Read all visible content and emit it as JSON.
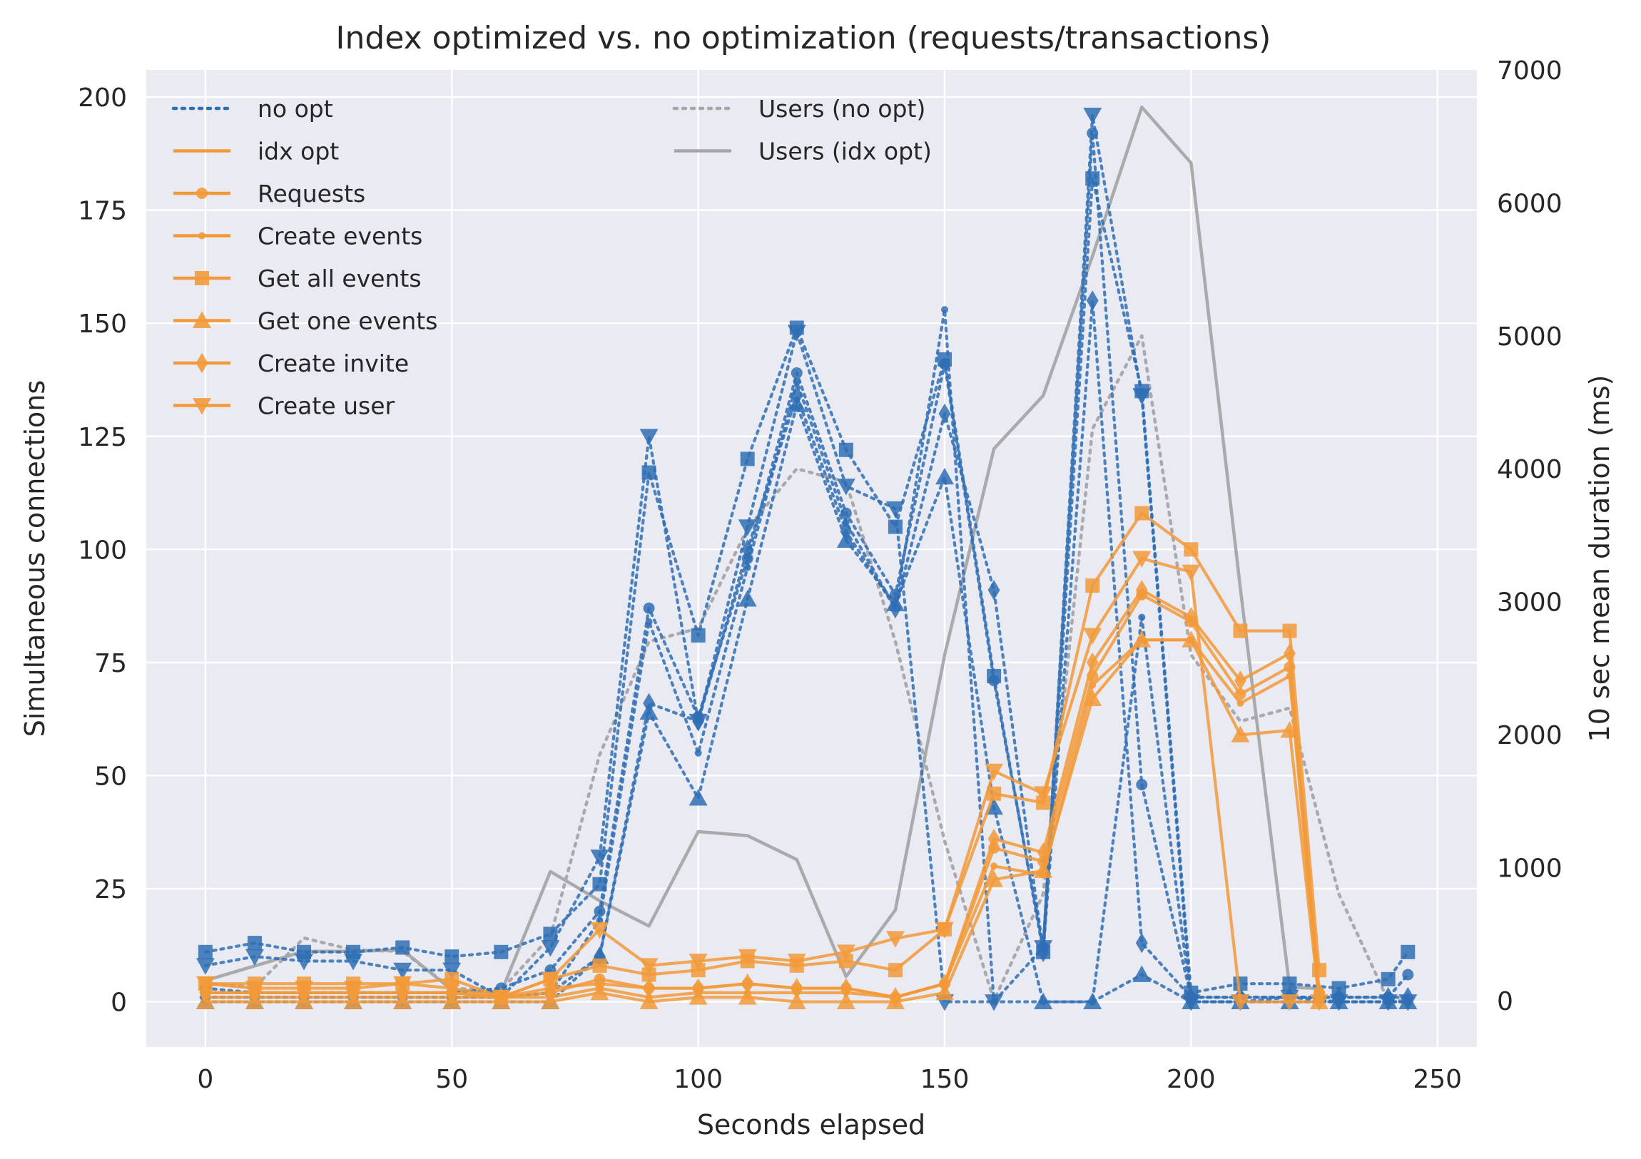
{
  "chart_data": {
    "type": "line",
    "title": "Index optimized vs. no optimization (requests/transactions)",
    "xlabel": "Seconds elapsed",
    "ylabel": "Simultaneous connections",
    "ylabel_right": "10 sec mean duration (ms)",
    "xlim": [
      -12,
      258
    ],
    "ylim": [
      -10,
      206
    ],
    "ylim_right": [
      -350,
      7000
    ],
    "x_ticks": [
      "0",
      "50",
      "100",
      "150",
      "200",
      "250"
    ],
    "y_ticks": [
      "0",
      "25",
      "50",
      "75",
      "100",
      "125",
      "150",
      "175",
      "200"
    ],
    "y_ticks_right": [
      "0",
      "1000",
      "2000",
      "3000",
      "4000",
      "5000",
      "6000",
      "7000"
    ],
    "grid": true,
    "colors": {
      "background": "#eaeaf2",
      "grid": "#ffffff",
      "no_opt": "#2f6fb4",
      "idx_opt": "#f29a3a",
      "users": "#a6a6a9"
    },
    "legend_left": [
      {
        "label": "no opt",
        "style": "dotted",
        "color": "#2f6fb4",
        "marker": "none"
      },
      {
        "label": "idx opt",
        "style": "solid",
        "color": "#f29a3a",
        "marker": "none"
      },
      {
        "label": "Requests",
        "style": "solid",
        "color": "#f29a3a",
        "marker": "circle"
      },
      {
        "label": "Create events",
        "style": "solid",
        "color": "#f29a3a",
        "marker": "point"
      },
      {
        "label": "Get all events",
        "style": "solid",
        "color": "#f29a3a",
        "marker": "square"
      },
      {
        "label": "Get one events",
        "style": "solid",
        "color": "#f29a3a",
        "marker": "triangle-up"
      },
      {
        "label": "Create invite",
        "style": "solid",
        "color": "#f29a3a",
        "marker": "diamond"
      },
      {
        "label": "Create user",
        "style": "solid",
        "color": "#f29a3a",
        "marker": "triangle-down"
      }
    ],
    "legend_right": [
      {
        "label": "Users (no opt)",
        "style": "dotted",
        "color": "#a6a6a9"
      },
      {
        "label": "Users (idx opt)",
        "style": "solid",
        "color": "#a6a6a9"
      }
    ],
    "legend_placement": "upper-left",
    "series_no_opt": [
      {
        "marker": "circle",
        "x": [
          0,
          10,
          20,
          30,
          40,
          50,
          60,
          70,
          80,
          90,
          100,
          110,
          120,
          130,
          140,
          150,
          160,
          170,
          180,
          190,
          200,
          210,
          220,
          230,
          240,
          244
        ],
        "y": [
          3,
          2,
          2,
          2,
          2,
          2,
          3,
          7,
          20,
          87,
          63,
          98,
          139,
          108,
          90,
          141,
          71,
          12,
          192,
          48,
          1,
          1,
          1,
          1,
          1,
          6
        ]
      },
      {
        "marker": "point",
        "x": [
          0,
          10,
          20,
          30,
          40,
          50,
          60,
          70,
          80,
          90,
          100,
          110,
          120,
          130,
          140,
          150,
          160,
          170,
          180,
          190,
          200,
          210,
          220,
          230,
          240,
          244
        ],
        "y": [
          1,
          1,
          1,
          1,
          1,
          1,
          1,
          2,
          18,
          84,
          55,
          96,
          137,
          106,
          87,
          153,
          0,
          0,
          0,
          85,
          0,
          0,
          0,
          0,
          0,
          0
        ]
      },
      {
        "marker": "square",
        "x": [
          0,
          10,
          20,
          30,
          40,
          50,
          60,
          70,
          80,
          90,
          100,
          110,
          120,
          130,
          140,
          150,
          160,
          170,
          180,
          190,
          200,
          210,
          220,
          230,
          240,
          244
        ],
        "y": [
          11,
          13,
          11,
          11,
          12,
          10,
          11,
          15,
          26,
          117,
          81,
          120,
          149,
          122,
          105,
          142,
          72,
          11,
          182,
          135,
          2,
          4,
          4,
          3,
          5,
          11
        ]
      },
      {
        "marker": "triangle-up",
        "x": [
          0,
          10,
          20,
          30,
          40,
          50,
          60,
          70,
          80,
          90,
          100,
          110,
          120,
          130,
          140,
          150,
          160,
          170,
          180,
          190,
          200,
          210,
          220,
          230,
          240,
          244
        ],
        "y": [
          0,
          0,
          0,
          0,
          0,
          0,
          0,
          0,
          10,
          64,
          45,
          89,
          132,
          102,
          88,
          116,
          43,
          0,
          0,
          6,
          0,
          0,
          0,
          0,
          0,
          0
        ]
      },
      {
        "marker": "diamond",
        "x": [
          0,
          10,
          20,
          30,
          40,
          50,
          60,
          70,
          80,
          90,
          100,
          110,
          120,
          130,
          140,
          150,
          160,
          170,
          180,
          190,
          200,
          210,
          220,
          230,
          240,
          244
        ],
        "y": [
          1,
          1,
          1,
          1,
          1,
          1,
          1,
          2,
          10,
          66,
          62,
          100,
          134,
          104,
          87,
          130,
          91,
          11,
          155,
          13,
          1,
          1,
          1,
          1,
          1,
          1
        ]
      },
      {
        "marker": "triangle-down",
        "x": [
          0,
          10,
          20,
          30,
          40,
          50,
          60,
          70,
          80,
          90,
          100,
          110,
          120,
          130,
          140,
          150,
          160,
          170,
          180,
          190,
          200,
          210,
          220,
          230,
          240,
          244
        ],
        "y": [
          8,
          10,
          9,
          9,
          7,
          7,
          1,
          12,
          32,
          125,
          62,
          105,
          148,
          114,
          109,
          0,
          0,
          12,
          196,
          134,
          0,
          0,
          1,
          0,
          0,
          0
        ]
      }
    ],
    "series_idx_opt": [
      {
        "marker": "circle",
        "x": [
          0,
          10,
          20,
          30,
          40,
          50,
          60,
          70,
          80,
          90,
          100,
          110,
          120,
          130,
          140,
          150,
          160,
          170,
          180,
          190,
          200,
          210,
          220,
          226
        ],
        "y": [
          2,
          2,
          2,
          2,
          2,
          2,
          1,
          2,
          5,
          3,
          3,
          4,
          3,
          3,
          1,
          4,
          34,
          31,
          72,
          90,
          84,
          68,
          74,
          2
        ]
      },
      {
        "marker": "point",
        "x": [
          0,
          10,
          20,
          30,
          40,
          50,
          60,
          70,
          80,
          90,
          100,
          110,
          120,
          130,
          140,
          150,
          160,
          170,
          180,
          190,
          200,
          210,
          220,
          226
        ],
        "y": [
          1,
          1,
          1,
          1,
          1,
          1,
          1,
          1,
          3,
          1,
          2,
          2,
          2,
          2,
          1,
          4,
          30,
          28,
          70,
          80,
          80,
          66,
          72,
          0
        ]
      },
      {
        "marker": "square",
        "x": [
          0,
          10,
          20,
          30,
          40,
          50,
          60,
          70,
          80,
          90,
          100,
          110,
          120,
          130,
          140,
          150,
          160,
          170,
          180,
          190,
          200,
          210,
          220,
          226
        ],
        "y": [
          4,
          4,
          4,
          4,
          4,
          5,
          1,
          5,
          8,
          6,
          7,
          9,
          8,
          9,
          7,
          16,
          46,
          44,
          92,
          108,
          100,
          82,
          82,
          7
        ]
      },
      {
        "marker": "triangle-up",
        "x": [
          0,
          10,
          20,
          30,
          40,
          50,
          60,
          70,
          80,
          90,
          100,
          110,
          120,
          130,
          140,
          150,
          160,
          170,
          180,
          190,
          200,
          210,
          220,
          226
        ],
        "y": [
          0,
          0,
          0,
          0,
          0,
          0,
          0,
          0,
          2,
          0,
          1,
          1,
          0,
          0,
          0,
          2,
          27,
          29,
          67,
          80,
          80,
          59,
          60,
          0
        ]
      },
      {
        "marker": "diamond",
        "x": [
          0,
          10,
          20,
          30,
          40,
          50,
          60,
          70,
          80,
          90,
          100,
          110,
          120,
          130,
          140,
          150,
          160,
          170,
          180,
          190,
          200,
          210,
          220,
          226
        ],
        "y": [
          2,
          2,
          2,
          2,
          2,
          2,
          1,
          3,
          4,
          3,
          3,
          4,
          3,
          3,
          1,
          4,
          36,
          33,
          75,
          91,
          85,
          71,
          77,
          2
        ]
      },
      {
        "marker": "triangle-down",
        "x": [
          0,
          10,
          20,
          30,
          40,
          50,
          60,
          70,
          80,
          90,
          100,
          110,
          120,
          130,
          140,
          150,
          160,
          170,
          180,
          190,
          200,
          210,
          220,
          226
        ],
        "y": [
          4,
          3,
          3,
          3,
          4,
          3,
          1,
          5,
          16,
          8,
          9,
          10,
          9,
          11,
          14,
          16,
          51,
          46,
          81,
          98,
          95,
          0,
          0,
          0
        ]
      }
    ],
    "series_users": [
      {
        "name": "Users (no opt)",
        "style": "dotted",
        "x": [
          0,
          10,
          20,
          30,
          40,
          50,
          60,
          70,
          80,
          90,
          100,
          110,
          120,
          130,
          140,
          150,
          160,
          170,
          180,
          190,
          200,
          210,
          220,
          230,
          240,
          244
        ],
        "y_ms": [
          130,
          100,
          470,
          380,
          370,
          90,
          80,
          480,
          1850,
          2700,
          2800,
          3550,
          4000,
          3900,
          2700,
          1200,
          0,
          800,
          4300,
          5000,
          2600,
          2100,
          2200,
          800,
          0,
          0
        ]
      },
      {
        "name": "Users (idx opt)",
        "style": "solid",
        "x": [
          0,
          10,
          20,
          30,
          40,
          50,
          60,
          70,
          80,
          90,
          100,
          110,
          120,
          130,
          140,
          150,
          160,
          170,
          180,
          190,
          200,
          210,
          220,
          226
        ],
        "y_ms": [
          150,
          260,
          370,
          370,
          380,
          80,
          60,
          970,
          750,
          560,
          1270,
          1240,
          1060,
          180,
          680,
          2600,
          4150,
          4550,
          5600,
          6720,
          6300,
          3100,
          100,
          90
        ]
      }
    ]
  }
}
